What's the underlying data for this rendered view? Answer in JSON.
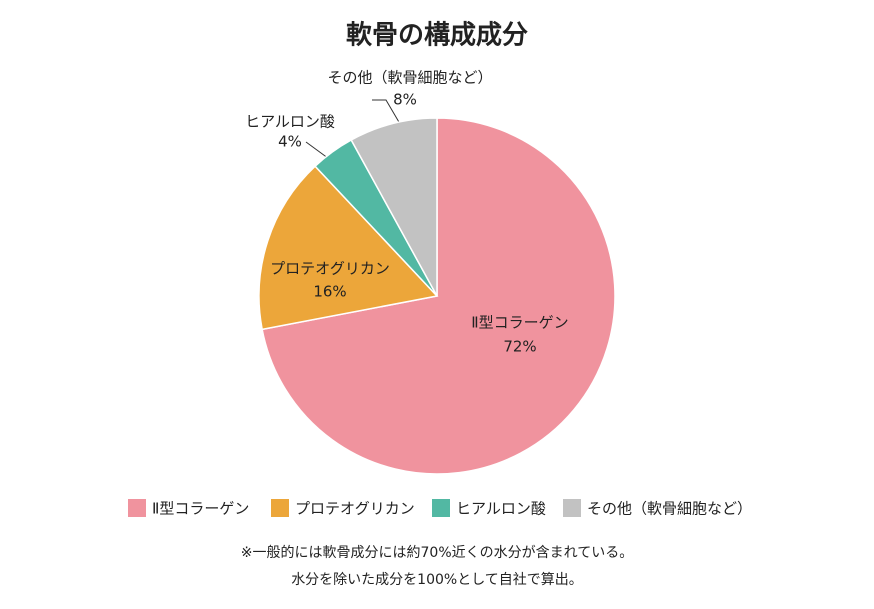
{
  "chart_data": {
    "type": "pie",
    "title": "軟骨の構成成分",
    "categories": [
      "Ⅱ型コラーゲン",
      "プロテオグリカン",
      "ヒアルロン酸",
      "その他（軟骨細胞など）"
    ],
    "values": [
      72,
      16,
      4,
      8
    ],
    "value_labels": [
      "72%",
      "16%",
      "4%",
      "8%"
    ],
    "colors": [
      "#f0939e",
      "#eca63a",
      "#52b8a3",
      "#c2c2c2"
    ],
    "annotations": [
      "※一般的には軟骨成分には約70%近くの水分が含まれている。",
      "水分を除いた成分を100%として自社で算出。"
    ]
  }
}
